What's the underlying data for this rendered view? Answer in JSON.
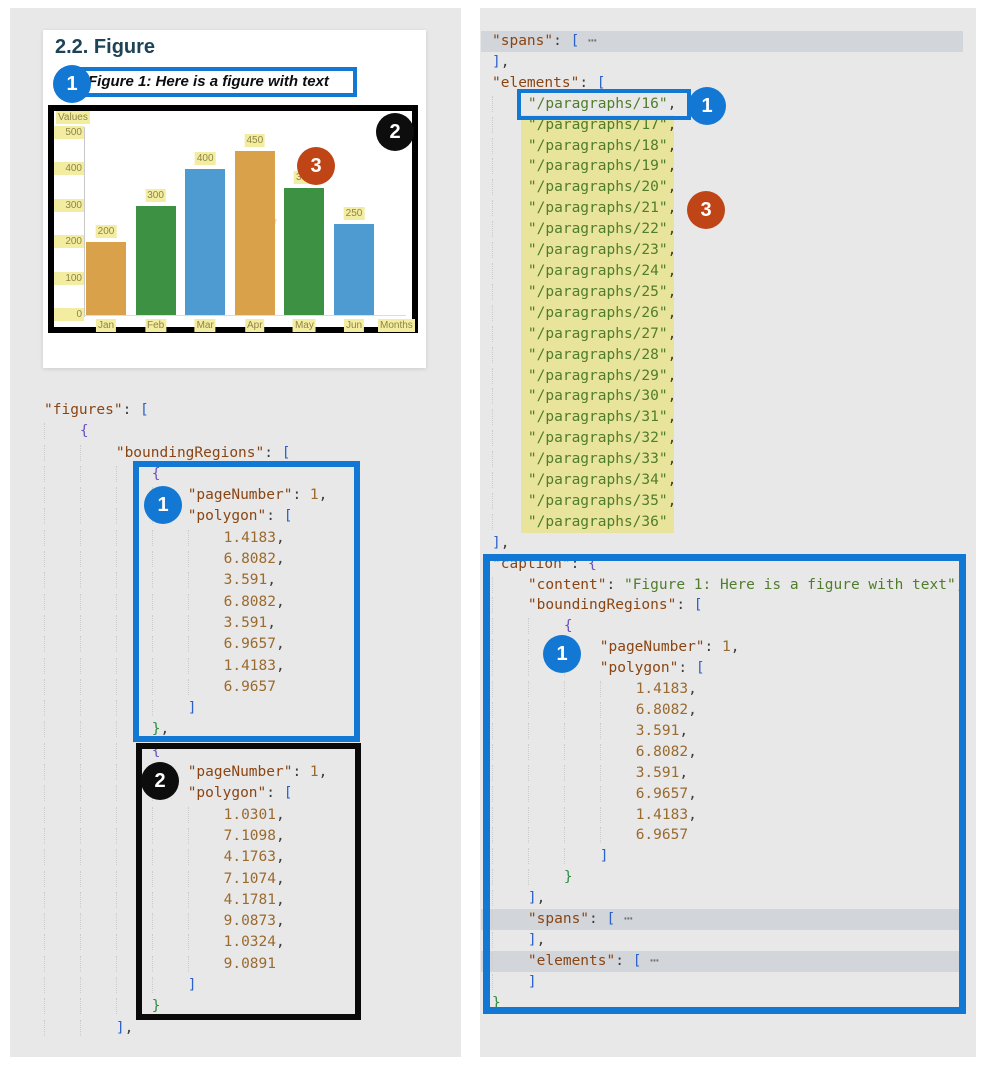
{
  "annotations": {
    "n1": "1",
    "n2": "2",
    "n3": "3"
  },
  "document_card": {
    "heading": "2.2. Figure",
    "caption": "Figure 1: Here is a figure with text"
  },
  "chart_data": {
    "type": "bar",
    "title": "",
    "categories": [
      "Jan",
      "Feb",
      "Mar",
      "Apr",
      "May",
      "Jun"
    ],
    "values": [
      200,
      300,
      400,
      450,
      350,
      250
    ],
    "bar_colors": [
      "#d9a24a",
      "#3d9142",
      "#4e9bd2",
      "#d9a24a",
      "#3d9142",
      "#4e9bd2"
    ],
    "xlabel": "Months",
    "ylabel": "Values",
    "y_ticks": [
      0,
      100,
      200,
      300,
      400,
      500
    ],
    "ylim": [
      0,
      500
    ],
    "data_labels": true,
    "grid": false,
    "legend": "none"
  },
  "left_code": {
    "lines": [
      [
        "\"figures\": [",
        0
      ],
      [
        "    {",
        0
      ],
      [
        "        \"boundingRegions\": [",
        0
      ],
      [
        "            {",
        0
      ],
      [
        "                \"pageNumber\": 1,",
        0
      ],
      [
        "                \"polygon\": [",
        0
      ],
      [
        "                    1.4183,",
        0
      ],
      [
        "                    6.8082,",
        0
      ],
      [
        "                    3.591,",
        0
      ],
      [
        "                    6.8082,",
        0
      ],
      [
        "                    3.591,",
        0
      ],
      [
        "                    6.9657,",
        0
      ],
      [
        "                    1.4183,",
        0
      ],
      [
        "                    6.9657",
        0
      ],
      [
        "                ]",
        0
      ],
      [
        "            },",
        0
      ],
      [
        "            {",
        0
      ],
      [
        "                \"pageNumber\": 1,",
        0
      ],
      [
        "                \"polygon\": [",
        0
      ],
      [
        "                    1.0301,",
        0
      ],
      [
        "                    7.1098,",
        0
      ],
      [
        "                    4.1763,",
        0
      ],
      [
        "                    7.1074,",
        0
      ],
      [
        "                    4.1781,",
        0
      ],
      [
        "                    9.0873,",
        0
      ],
      [
        "                    1.0324,",
        0
      ],
      [
        "                    9.0891",
        0
      ],
      [
        "                ]",
        0
      ],
      [
        "            }",
        0
      ],
      [
        "        ],",
        0
      ]
    ]
  },
  "right_code": {
    "lines": [
      [
        "\"spans\": [ ⋯",
        "g"
      ],
      [
        "],",
        0
      ],
      [
        "\"elements\": [",
        0
      ],
      [
        "    \"/paragraphs/16\",",
        0
      ],
      [
        "    \"/paragraphs/17\",",
        "y"
      ],
      [
        "    \"/paragraphs/18\",",
        "y"
      ],
      [
        "    \"/paragraphs/19\",",
        "y"
      ],
      [
        "    \"/paragraphs/20\",",
        "y"
      ],
      [
        "    \"/paragraphs/21\",",
        "y"
      ],
      [
        "    \"/paragraphs/22\",",
        "y"
      ],
      [
        "    \"/paragraphs/23\",",
        "y"
      ],
      [
        "    \"/paragraphs/24\",",
        "y"
      ],
      [
        "    \"/paragraphs/25\",",
        "y"
      ],
      [
        "    \"/paragraphs/26\",",
        "y"
      ],
      [
        "    \"/paragraphs/27\",",
        "y"
      ],
      [
        "    \"/paragraphs/28\",",
        "y"
      ],
      [
        "    \"/paragraphs/29\",",
        "y"
      ],
      [
        "    \"/paragraphs/30\",",
        "y"
      ],
      [
        "    \"/paragraphs/31\",",
        "y"
      ],
      [
        "    \"/paragraphs/32\",",
        "y"
      ],
      [
        "    \"/paragraphs/33\",",
        "y"
      ],
      [
        "    \"/paragraphs/34\",",
        "y"
      ],
      [
        "    \"/paragraphs/35\",",
        "y"
      ],
      [
        "    \"/paragraphs/36\"",
        "y"
      ],
      [
        "],",
        0
      ],
      [
        "\"caption\": {",
        0
      ],
      [
        "    \"content\": \"Figure 1: Here is a figure with text\",",
        0
      ],
      [
        "    \"boundingRegions\": [",
        0
      ],
      [
        "        {",
        0
      ],
      [
        "            \"pageNumber\": 1,",
        0
      ],
      [
        "            \"polygon\": [",
        0
      ],
      [
        "                1.4183,",
        0
      ],
      [
        "                6.8082,",
        0
      ],
      [
        "                3.591,",
        0
      ],
      [
        "                6.8082,",
        0
      ],
      [
        "                3.591,",
        0
      ],
      [
        "                6.9657,",
        0
      ],
      [
        "                1.4183,",
        0
      ],
      [
        "                6.9657",
        0
      ],
      [
        "            ]",
        0
      ],
      [
        "        }",
        0
      ],
      [
        "    ],",
        0
      ],
      [
        "    \"spans\": [ ⋯",
        "g"
      ],
      [
        "    ],",
        0
      ],
      [
        "    \"elements\": [ ⋯",
        "g"
      ],
      [
        "    ]",
        0
      ],
      [
        "}",
        0
      ]
    ]
  },
  "colors": {
    "accent_blue": "#1377d4",
    "marker_black": "#0d0d0d",
    "marker_orange": "#bf4517",
    "highlight_yellow": "#e9e49b",
    "highlight_gray": "#d2d5d9",
    "panel_gray": "#e8e8e8",
    "syntax_key": "#8a4513",
    "syntax_string": "#4f7d2b",
    "syntax_number": "#9a6a2e"
  }
}
